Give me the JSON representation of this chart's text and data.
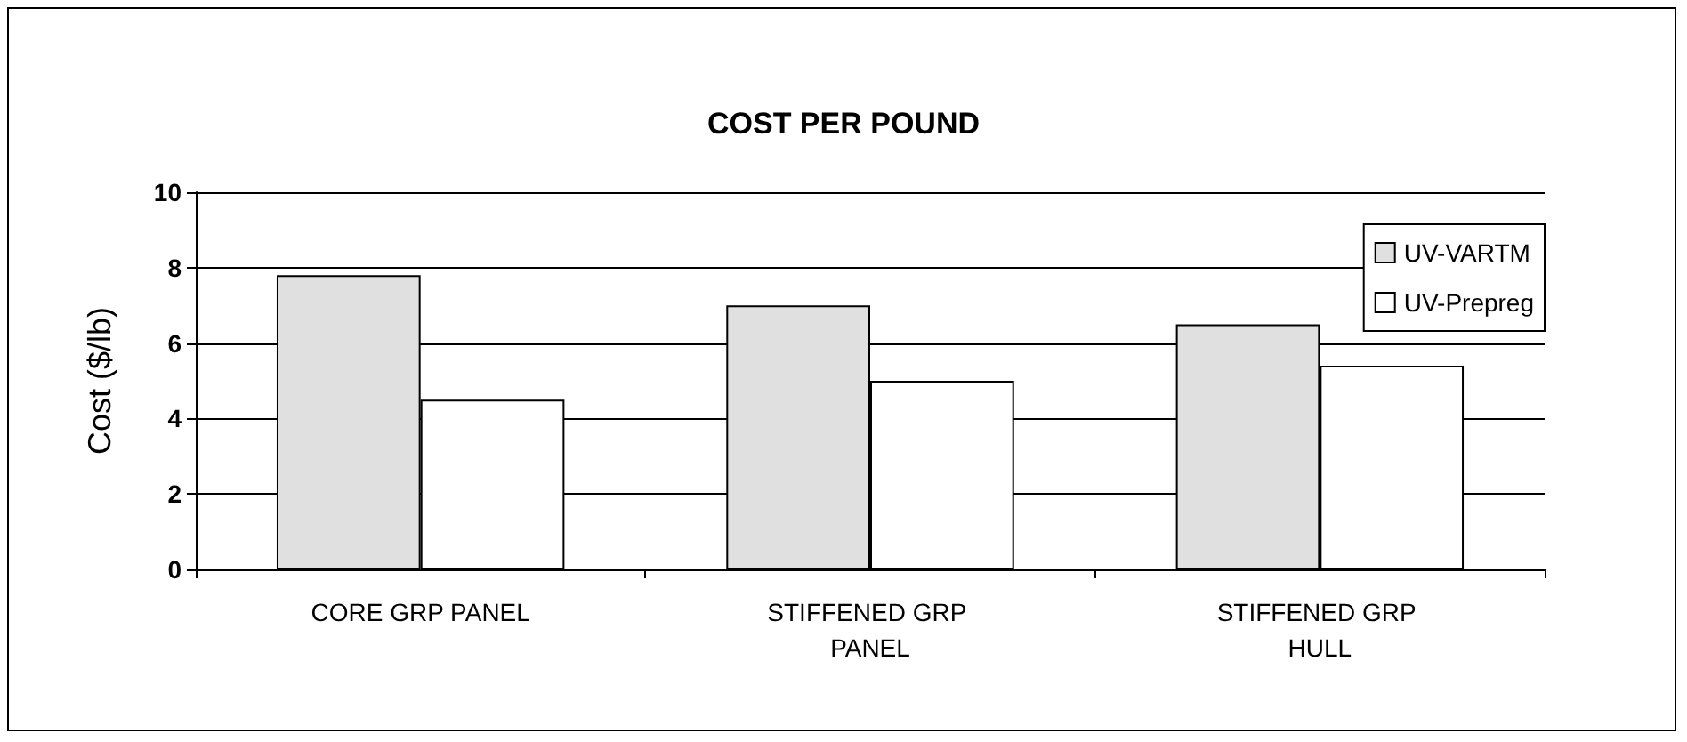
{
  "chart_data": {
    "type": "bar",
    "title": "COST PER POUND",
    "ylabel": "Cost ($/lb)",
    "categories": [
      "CORE GRP PANEL",
      "STIFFENED GRP PANEL",
      "STIFFENED GRP HULL"
    ],
    "series": [
      {
        "name": "UV-VARTM",
        "color": "#e0e0e0",
        "values": [
          7.8,
          7.0,
          6.5
        ]
      },
      {
        "name": "UV-Prepreg",
        "color": "#ffffff",
        "values": [
          4.5,
          5.0,
          5.4
        ]
      }
    ],
    "ylim": [
      0,
      10
    ],
    "yticks": [
      0,
      2,
      4,
      6,
      8,
      10
    ],
    "grid": "y",
    "legend": "top right"
  }
}
